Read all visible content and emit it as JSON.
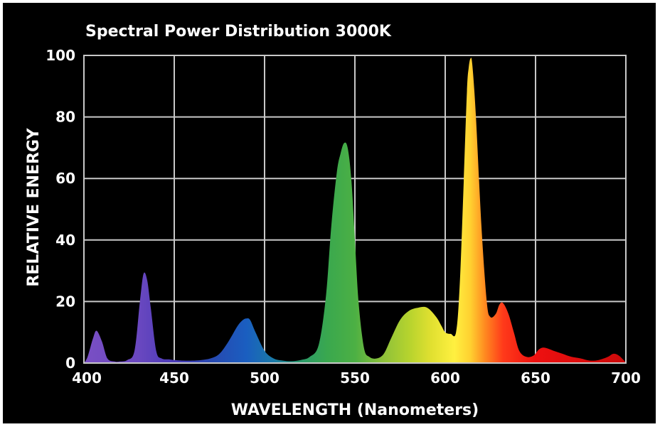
{
  "chart_data": {
    "type": "area",
    "title": "Spectral Power Distribution 3000K",
    "xlabel": "WAVELENGTH (Nanometers)",
    "ylabel": "RELATIVE ENERGY",
    "xlim": [
      400,
      700
    ],
    "ylim": [
      0,
      100
    ],
    "x_ticks": [
      "400",
      "450",
      "500",
      "550",
      "600",
      "650",
      "700"
    ],
    "y_ticks": [
      "100",
      "80",
      "60",
      "40",
      "20",
      "0"
    ],
    "grid": true,
    "background_color": "#000000",
    "grid_color": "#c8c8c8",
    "fill": "visible-spectrum gradient (violet to red)",
    "series": [
      {
        "x": [
          400,
          402,
          405,
          407,
          410,
          413,
          417,
          420,
          424,
          428,
          431,
          433,
          435,
          437,
          440,
          443,
          447,
          450,
          455,
          460,
          465,
          470,
          475,
          480,
          485,
          488,
          490,
          492,
          495,
          500,
          505,
          510,
          515,
          520,
          525,
          530,
          534,
          537,
          540,
          542,
          544,
          546,
          548,
          550,
          552,
          555,
          558,
          562,
          566,
          570,
          575,
          580,
          585,
          590,
          595,
          598,
          600,
          603,
          606,
          608,
          610,
          612,
          613,
          614,
          615,
          617,
          620,
          623,
          625,
          628,
          630,
          632,
          635,
          638,
          641,
          645,
          649,
          652,
          655,
          660,
          665,
          670,
          675,
          680,
          685,
          690,
          693,
          696,
          699,
          700
        ],
        "y": [
          0,
          2,
          8,
          10.5,
          7,
          1.5,
          0.5,
          0.5,
          1,
          4,
          20,
          29,
          27,
          18,
          4,
          1.5,
          1.2,
          1,
          0.8,
          0.8,
          1,
          1.5,
          3,
          7,
          12,
          14,
          14.5,
          14,
          10,
          4,
          1.5,
          0.8,
          0.6,
          1,
          2,
          6,
          22,
          45,
          62,
          68,
          71.5,
          70,
          60,
          40,
          20,
          5,
          2,
          1.5,
          3,
          8,
          14,
          17,
          18,
          18,
          15,
          12,
          10,
          9.5,
          10,
          25,
          55,
          88,
          96,
          99,
          97,
          80,
          45,
          20,
          15,
          16,
          19,
          19.5,
          16,
          10,
          4,
          2,
          2.5,
          4.5,
          5,
          4,
          3,
          2,
          1.5,
          0.8,
          1,
          2,
          3,
          2.5,
          0.8,
          0
        ]
      }
    ]
  }
}
